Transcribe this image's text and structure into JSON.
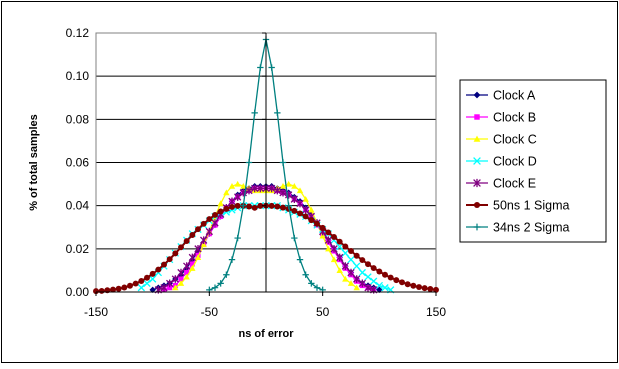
{
  "chart_data": {
    "type": "line",
    "title": "",
    "xlabel": "ns of error",
    "ylabel": "% of total samples",
    "xlim": [
      -150,
      150
    ],
    "ylim": [
      0,
      0.12
    ],
    "x_ticks": [
      "-150",
      "-50",
      "50",
      "150"
    ],
    "x_tick_values": [
      -150,
      -50,
      50,
      150
    ],
    "y_ticks": [
      "0.00",
      "0.02",
      "0.04",
      "0.06",
      "0.08",
      "0.10",
      "0.12"
    ],
    "y_tick_values": [
      0,
      0.02,
      0.04,
      0.06,
      0.08,
      0.1,
      0.12
    ],
    "grid": "horizontal",
    "legend_position": "right",
    "series": [
      {
        "name": "Clock A",
        "color": "#000080",
        "marker": "diamond",
        "points": [
          [
            -100,
            0.001
          ],
          [
            -95,
            0.002
          ],
          [
            -90,
            0.003
          ],
          [
            -85,
            0.004
          ],
          [
            -80,
            0.006
          ],
          [
            -75,
            0.008
          ],
          [
            -70,
            0.011
          ],
          [
            -65,
            0.015
          ],
          [
            -60,
            0.019
          ],
          [
            -55,
            0.023
          ],
          [
            -50,
            0.027
          ],
          [
            -45,
            0.031
          ],
          [
            -40,
            0.035
          ],
          [
            -35,
            0.039
          ],
          [
            -30,
            0.042
          ],
          [
            -25,
            0.045
          ],
          [
            -20,
            0.047
          ],
          [
            -15,
            0.048
          ],
          [
            -10,
            0.049
          ],
          [
            -5,
            0.049
          ],
          [
            0,
            0.049
          ],
          [
            5,
            0.049
          ],
          [
            10,
            0.048
          ],
          [
            15,
            0.047
          ],
          [
            20,
            0.046
          ],
          [
            25,
            0.044
          ],
          [
            30,
            0.042
          ],
          [
            35,
            0.039
          ],
          [
            40,
            0.036
          ],
          [
            45,
            0.032
          ],
          [
            50,
            0.028
          ],
          [
            55,
            0.024
          ],
          [
            60,
            0.02
          ],
          [
            65,
            0.016
          ],
          [
            70,
            0.012
          ],
          [
            75,
            0.009
          ],
          [
            80,
            0.006
          ],
          [
            85,
            0.004
          ],
          [
            90,
            0.003
          ],
          [
            95,
            0.002
          ],
          [
            100,
            0.001
          ]
        ]
      },
      {
        "name": "Clock B",
        "color": "#ff00ff",
        "marker": "square",
        "points": [
          [
            -90,
            0.001
          ],
          [
            -85,
            0.002
          ],
          [
            -80,
            0.003
          ],
          [
            -75,
            0.006
          ],
          [
            -70,
            0.009
          ],
          [
            -65,
            0.013
          ],
          [
            -60,
            0.017
          ],
          [
            -55,
            0.022
          ],
          [
            -50,
            0.027
          ],
          [
            -45,
            0.031
          ],
          [
            -40,
            0.035
          ],
          [
            -35,
            0.039
          ],
          [
            -30,
            0.042
          ],
          [
            -25,
            0.044
          ],
          [
            -20,
            0.046
          ],
          [
            -15,
            0.047
          ],
          [
            -10,
            0.048
          ],
          [
            -5,
            0.048
          ],
          [
            0,
            0.048
          ],
          [
            5,
            0.048
          ],
          [
            10,
            0.047
          ],
          [
            15,
            0.046
          ],
          [
            20,
            0.045
          ],
          [
            25,
            0.043
          ],
          [
            30,
            0.041
          ],
          [
            35,
            0.038
          ],
          [
            40,
            0.035
          ],
          [
            45,
            0.031
          ],
          [
            50,
            0.027
          ],
          [
            55,
            0.023
          ],
          [
            60,
            0.019
          ],
          [
            65,
            0.015
          ],
          [
            70,
            0.011
          ],
          [
            75,
            0.008
          ],
          [
            80,
            0.005
          ],
          [
            85,
            0.003
          ],
          [
            90,
            0.002
          ],
          [
            95,
            0.001
          ]
        ]
      },
      {
        "name": "Clock C",
        "color": "#ffff00",
        "marker": "triangle",
        "points": [
          [
            -80,
            0.002
          ],
          [
            -75,
            0.004
          ],
          [
            -70,
            0.007
          ],
          [
            -65,
            0.011
          ],
          [
            -60,
            0.016
          ],
          [
            -55,
            0.022
          ],
          [
            -50,
            0.028
          ],
          [
            -45,
            0.035
          ],
          [
            -40,
            0.041
          ],
          [
            -35,
            0.046
          ],
          [
            -30,
            0.049
          ],
          [
            -25,
            0.05
          ],
          [
            -20,
            0.049
          ],
          [
            -15,
            0.048
          ],
          [
            -10,
            0.047
          ],
          [
            -5,
            0.047
          ],
          [
            0,
            0.047
          ],
          [
            5,
            0.047
          ],
          [
            10,
            0.048
          ],
          [
            15,
            0.049
          ],
          [
            20,
            0.05
          ],
          [
            25,
            0.049
          ],
          [
            30,
            0.047
          ],
          [
            35,
            0.043
          ],
          [
            40,
            0.038
          ],
          [
            45,
            0.032
          ],
          [
            50,
            0.026
          ],
          [
            55,
            0.02
          ],
          [
            60,
            0.015
          ],
          [
            65,
            0.01
          ],
          [
            70,
            0.006
          ],
          [
            75,
            0.004
          ],
          [
            80,
            0.002
          ]
        ]
      },
      {
        "name": "Clock D",
        "color": "#00ffff",
        "marker": "x",
        "points": [
          [
            -110,
            0.002
          ],
          [
            -105,
            0.004
          ],
          [
            -100,
            0.006
          ],
          [
            -95,
            0.009
          ],
          [
            -90,
            0.012
          ],
          [
            -85,
            0.015
          ],
          [
            -80,
            0.018
          ],
          [
            -75,
            0.021
          ],
          [
            -70,
            0.024
          ],
          [
            -65,
            0.027
          ],
          [
            -60,
            0.029
          ],
          [
            -55,
            0.031
          ],
          [
            -50,
            0.033
          ],
          [
            -45,
            0.035
          ],
          [
            -40,
            0.036
          ],
          [
            -35,
            0.037
          ],
          [
            -30,
            0.038
          ],
          [
            -25,
            0.039
          ],
          [
            -20,
            0.04
          ],
          [
            -15,
            0.04
          ],
          [
            -10,
            0.04
          ],
          [
            -5,
            0.04
          ],
          [
            0,
            0.04
          ],
          [
            5,
            0.04
          ],
          [
            10,
            0.04
          ],
          [
            15,
            0.039
          ],
          [
            20,
            0.038
          ],
          [
            25,
            0.037
          ],
          [
            30,
            0.036
          ],
          [
            35,
            0.035
          ],
          [
            40,
            0.033
          ],
          [
            45,
            0.031
          ],
          [
            50,
            0.029
          ],
          [
            55,
            0.027
          ],
          [
            60,
            0.024
          ],
          [
            65,
            0.021
          ],
          [
            70,
            0.018
          ],
          [
            75,
            0.015
          ],
          [
            80,
            0.012
          ],
          [
            85,
            0.009
          ],
          [
            90,
            0.007
          ],
          [
            95,
            0.005
          ],
          [
            100,
            0.003
          ],
          [
            105,
            0.002
          ],
          [
            110,
            0.001
          ]
        ]
      },
      {
        "name": "Clock E",
        "color": "#800080",
        "marker": "star",
        "points": [
          [
            -95,
            0.001
          ],
          [
            -90,
            0.002
          ],
          [
            -85,
            0.004
          ],
          [
            -80,
            0.006
          ],
          [
            -75,
            0.009
          ],
          [
            -70,
            0.012
          ],
          [
            -65,
            0.016
          ],
          [
            -60,
            0.02
          ],
          [
            -55,
            0.024
          ],
          [
            -50,
            0.028
          ],
          [
            -45,
            0.032
          ],
          [
            -40,
            0.036
          ],
          [
            -35,
            0.039
          ],
          [
            -30,
            0.042
          ],
          [
            -25,
            0.044
          ],
          [
            -20,
            0.046
          ],
          [
            -15,
            0.047
          ],
          [
            -10,
            0.048
          ],
          [
            -5,
            0.048
          ],
          [
            0,
            0.048
          ],
          [
            5,
            0.048
          ],
          [
            10,
            0.047
          ],
          [
            15,
            0.046
          ],
          [
            20,
            0.045
          ],
          [
            25,
            0.043
          ],
          [
            30,
            0.041
          ],
          [
            35,
            0.038
          ],
          [
            40,
            0.035
          ],
          [
            45,
            0.032
          ],
          [
            50,
            0.028
          ],
          [
            55,
            0.024
          ],
          [
            60,
            0.02
          ],
          [
            65,
            0.016
          ],
          [
            70,
            0.012
          ],
          [
            75,
            0.009
          ],
          [
            80,
            0.006
          ],
          [
            85,
            0.004
          ],
          [
            90,
            0.002
          ],
          [
            95,
            0.001
          ]
        ]
      },
      {
        "name": "50ns 1 Sigma",
        "color": "#800000",
        "marker": "circle",
        "points": [
          [
            -150,
            0.0004
          ],
          [
            -145,
            0.0005
          ],
          [
            -140,
            0.0008
          ],
          [
            -135,
            0.0011
          ],
          [
            -130,
            0.0015
          ],
          [
            -125,
            0.0021
          ],
          [
            -120,
            0.0029
          ],
          [
            -115,
            0.0039
          ],
          [
            -110,
            0.0051
          ],
          [
            -105,
            0.0066
          ],
          [
            -100,
            0.0084
          ],
          [
            -95,
            0.0104
          ],
          [
            -90,
            0.0127
          ],
          [
            -85,
            0.0152
          ],
          [
            -80,
            0.0179
          ],
          [
            -75,
            0.0207
          ],
          [
            -70,
            0.0236
          ],
          [
            -65,
            0.0264
          ],
          [
            -60,
            0.0291
          ],
          [
            -55,
            0.0316
          ],
          [
            -50,
            0.0338
          ],
          [
            -45,
            0.0357
          ],
          [
            -40,
            0.0373
          ],
          [
            -35,
            0.0385
          ],
          [
            -30,
            0.0394
          ],
          [
            -25,
            0.0399
          ],
          [
            -20,
            0.0399
          ],
          [
            -15,
            0.0396
          ],
          [
            -10,
            0.039
          ],
          [
            -5,
            0.0399
          ],
          [
            0,
            0.04
          ],
          [
            5,
            0.0399
          ],
          [
            10,
            0.0396
          ],
          [
            15,
            0.0391
          ],
          [
            20,
            0.0385
          ],
          [
            25,
            0.0376
          ],
          [
            30,
            0.0364
          ],
          [
            35,
            0.035
          ],
          [
            40,
            0.0333
          ],
          [
            45,
            0.0316
          ],
          [
            50,
            0.0297
          ],
          [
            55,
            0.0276
          ],
          [
            60,
            0.0255
          ],
          [
            65,
            0.0233
          ],
          [
            70,
            0.0211
          ],
          [
            75,
            0.019
          ],
          [
            80,
            0.0168
          ],
          [
            85,
            0.0148
          ],
          [
            90,
            0.0129
          ],
          [
            95,
            0.0111
          ],
          [
            100,
            0.0095
          ],
          [
            105,
            0.008
          ],
          [
            110,
            0.0067
          ],
          [
            115,
            0.0055
          ],
          [
            120,
            0.0045
          ],
          [
            125,
            0.0036
          ],
          [
            130,
            0.0029
          ],
          [
            135,
            0.0023
          ],
          [
            140,
            0.0018
          ],
          [
            145,
            0.0014
          ],
          [
            150,
            0.001
          ]
        ]
      },
      {
        "name": "34ns 2 Sigma",
        "color": "#008080",
        "marker": "plus",
        "points": [
          [
            -50,
            0.001
          ],
          [
            -45,
            0.002
          ],
          [
            -40,
            0.004
          ],
          [
            -35,
            0.008
          ],
          [
            -30,
            0.015
          ],
          [
            -25,
            0.025
          ],
          [
            -20,
            0.04
          ],
          [
            -15,
            0.06
          ],
          [
            -10,
            0.083
          ],
          [
            -5,
            0.104
          ],
          [
            0,
            0.117
          ],
          [
            5,
            0.104
          ],
          [
            10,
            0.083
          ],
          [
            15,
            0.06
          ],
          [
            20,
            0.04
          ],
          [
            25,
            0.025
          ],
          [
            30,
            0.015
          ],
          [
            35,
            0.008
          ],
          [
            40,
            0.004
          ],
          [
            45,
            0.002
          ],
          [
            50,
            0.001
          ]
        ]
      }
    ]
  }
}
